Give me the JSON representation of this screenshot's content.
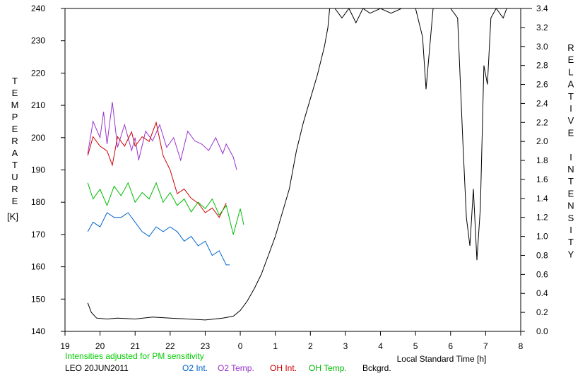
{
  "chart_data": {
    "type": "line",
    "title": "",
    "station_date": "LEO 20JUN2011",
    "note": "Intensities adjusted for PM sensitivity",
    "xlabel": "Local Standard Time [h]",
    "ylabel_left": "TEMPERATURE",
    "ylabel_left_unit": "[K]",
    "ylabel_right": "RELATIVE INTENSITY",
    "xlim": [
      19,
      32
    ],
    "xtick_values": [
      19,
      20,
      21,
      22,
      23,
      24,
      25,
      26,
      27,
      28,
      29,
      30,
      31,
      32
    ],
    "xtick_labels": [
      "19",
      "20",
      "21",
      "22",
      "23",
      "0",
      "1",
      "2",
      "3",
      "4",
      "5",
      "6",
      "7",
      "8"
    ],
    "ylim_left": [
      140,
      240
    ],
    "yticks_left": [
      "140",
      "150",
      "160",
      "170",
      "180",
      "190",
      "200",
      "210",
      "220",
      "230",
      "240"
    ],
    "ylim_right": [
      0,
      3.4
    ],
    "yticks_right": [
      "0.0",
      "0.2",
      "0.4",
      "0.6",
      "0.8",
      "1.0",
      "1.2",
      "1.4",
      "1.6",
      "1.8",
      "2.0",
      "2.2",
      "2.4",
      "2.6",
      "2.8",
      "3.0",
      "3.2",
      "3.4"
    ],
    "grid": false,
    "legend": [
      {
        "name": "O2 Int.",
        "color": "#0066cc"
      },
      {
        "name": "O2 Temp.",
        "color": "#9933cc"
      },
      {
        "name": "OH Int.",
        "color": "#cc0000"
      },
      {
        "name": "OH Temp.",
        "color": "#00bb00"
      },
      {
        "name": "Bckgrd.",
        "color": "#000000"
      }
    ],
    "series": [
      {
        "name": "O2 Temp.",
        "axis": "left",
        "color": "#9933cc",
        "x": [
          19.65,
          19.8,
          20.0,
          20.1,
          20.2,
          20.35,
          20.5,
          20.7,
          20.9,
          21.0,
          21.1,
          21.3,
          21.5,
          21.7,
          21.9,
          22.1,
          22.3,
          22.5,
          22.7,
          22.9,
          23.1,
          23.3,
          23.5,
          23.6,
          23.8,
          23.9
        ],
        "y": [
          195,
          205,
          200,
          208,
          198,
          211,
          197,
          204,
          196,
          200,
          193,
          202,
          199,
          204,
          197,
          200,
          193,
          202,
          199,
          198,
          196,
          200,
          195,
          198,
          194,
          190
        ]
      },
      {
        "name": "OH Int.",
        "axis": "right",
        "color": "#cc0000",
        "x": [
          19.65,
          19.8,
          20.0,
          20.2,
          20.35,
          20.5,
          20.7,
          20.9,
          21.0,
          21.2,
          21.4,
          21.6,
          21.8,
          22.0,
          22.2,
          22.4,
          22.6,
          22.8,
          23.0,
          23.2,
          23.4,
          23.6
        ],
        "y": [
          1.85,
          2.05,
          1.95,
          1.9,
          1.75,
          2.05,
          1.95,
          2.1,
          1.95,
          2.05,
          2.0,
          2.2,
          1.85,
          1.7,
          1.45,
          1.5,
          1.4,
          1.35,
          1.25,
          1.3,
          1.2,
          1.35
        ]
      },
      {
        "name": "OH Temp.",
        "axis": "left",
        "color": "#00bb00",
        "x": [
          19.65,
          19.8,
          20.0,
          20.2,
          20.4,
          20.6,
          20.8,
          21.0,
          21.2,
          21.4,
          21.6,
          21.8,
          22.0,
          22.2,
          22.4,
          22.6,
          22.8,
          23.0,
          23.2,
          23.4,
          23.6,
          23.8,
          24.0,
          24.1
        ],
        "y": [
          186,
          181,
          184,
          179,
          185,
          182,
          186,
          180,
          183,
          181,
          186,
          180,
          183,
          179,
          181,
          177,
          180,
          178,
          181,
          176,
          179,
          170,
          178,
          173
        ]
      },
      {
        "name": "O2 Int.",
        "axis": "right",
        "color": "#0066cc",
        "x": [
          19.65,
          19.8,
          20.0,
          20.2,
          20.4,
          20.6,
          20.8,
          21.0,
          21.2,
          21.4,
          21.6,
          21.8,
          22.0,
          22.2,
          22.4,
          22.6,
          22.8,
          23.0,
          23.2,
          23.4,
          23.6,
          23.7
        ],
        "y": [
          1.05,
          1.15,
          1.1,
          1.25,
          1.2,
          1.2,
          1.25,
          1.15,
          1.05,
          1.0,
          1.1,
          1.05,
          1.1,
          1.05,
          0.95,
          1.0,
          0.9,
          0.95,
          0.8,
          0.85,
          0.7,
          0.7
        ]
      },
      {
        "name": "Bckgrd.",
        "axis": "right",
        "color": "#000000",
        "x": [
          19.65,
          19.75,
          19.9,
          20.2,
          20.5,
          21.0,
          21.5,
          22.0,
          22.5,
          23.0,
          23.5,
          23.8,
          24.0,
          24.2,
          24.4,
          24.6,
          24.8,
          25.0,
          25.2,
          25.4,
          25.6,
          25.8,
          26.0,
          26.2,
          26.4,
          26.5,
          26.55,
          26.7,
          26.9,
          27.1,
          27.3,
          27.5,
          27.7,
          28.0,
          28.3,
          28.6,
          29.0,
          29.2,
          29.3,
          29.5,
          29.8,
          30.0,
          30.2,
          30.35,
          30.45,
          30.55,
          30.65,
          30.75,
          30.85,
          30.95,
          31.05,
          31.15,
          31.3,
          31.5,
          31.6,
          31.7
        ],
        "y": [
          0.3,
          0.2,
          0.14,
          0.13,
          0.14,
          0.13,
          0.15,
          0.14,
          0.13,
          0.12,
          0.14,
          0.16,
          0.22,
          0.32,
          0.45,
          0.6,
          0.8,
          1.0,
          1.25,
          1.5,
          1.9,
          2.2,
          2.45,
          2.7,
          3.0,
          3.2,
          3.4,
          3.5,
          3.3,
          3.55,
          3.25,
          3.45,
          3.35,
          3.5,
          3.35,
          3.45,
          3.5,
          3.1,
          2.55,
          3.4,
          3.5,
          3.45,
          3.3,
          2.0,
          1.2,
          0.9,
          1.5,
          0.75,
          1.3,
          2.8,
          2.6,
          3.3,
          3.5,
          3.3,
          3.5,
          3.4
        ]
      }
    ]
  }
}
